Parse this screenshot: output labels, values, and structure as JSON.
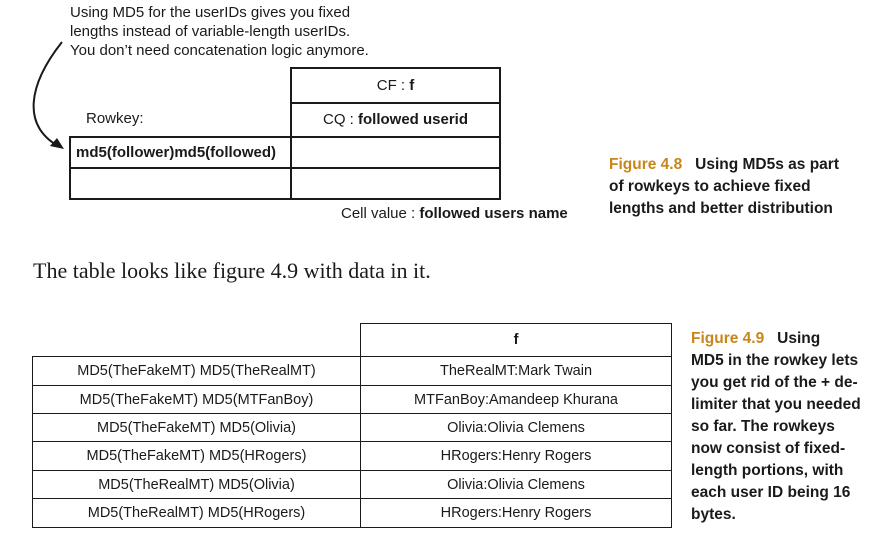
{
  "fig48": {
    "annotation_lines": [
      "Using MD5 for the userIDs gives you fixed",
      "lengths instead of variable-length userIDs.",
      "You don’t need concatenation logic anymore."
    ],
    "cf_label": "CF : ",
    "cf_value": "f",
    "rowkey_label": "Rowkey:",
    "cq_label": "CQ : ",
    "cq_value": "followed userid",
    "rowkey_value": "md5(follower)md5(followed)",
    "cell_value_label": "Cell value : ",
    "cell_value_value": "followed users name",
    "caption_number": "Figure 4.8",
    "caption_lines": [
      "Using MD5s as part",
      "of rowkeys to achieve fixed",
      "lengths and better distribution"
    ]
  },
  "body_text": "The table looks like figure 4.9 with data in it.",
  "fig49": {
    "header": "f",
    "rows": [
      {
        "rowkey": "MD5(TheFakeMT) MD5(TheRealMT)",
        "value": "TheRealMT:Mark Twain"
      },
      {
        "rowkey": "MD5(TheFakeMT) MD5(MTFanBoy)",
        "value": "MTFanBoy:Amandeep Khurana"
      },
      {
        "rowkey": "MD5(TheFakeMT) MD5(Olivia)",
        "value": "Olivia:Olivia Clemens"
      },
      {
        "rowkey": "MD5(TheFakeMT) MD5(HRogers)",
        "value": "HRogers:Henry Rogers"
      },
      {
        "rowkey": "MD5(TheRealMT) MD5(Olivia)",
        "value": "Olivia:Olivia Clemens"
      },
      {
        "rowkey": "MD5(TheRealMT) MD5(HRogers)",
        "value": "HRogers:Henry Rogers"
      }
    ],
    "caption_number": "Figure 4.9",
    "caption_first": "Using",
    "caption_lines": [
      "MD5 in the rowkey lets",
      "you get rid of the + de-",
      "limiter that you needed",
      "so far. The rowkeys",
      "now consist of fixed-",
      "length portions, with",
      "each user ID being 16",
      "bytes."
    ]
  }
}
